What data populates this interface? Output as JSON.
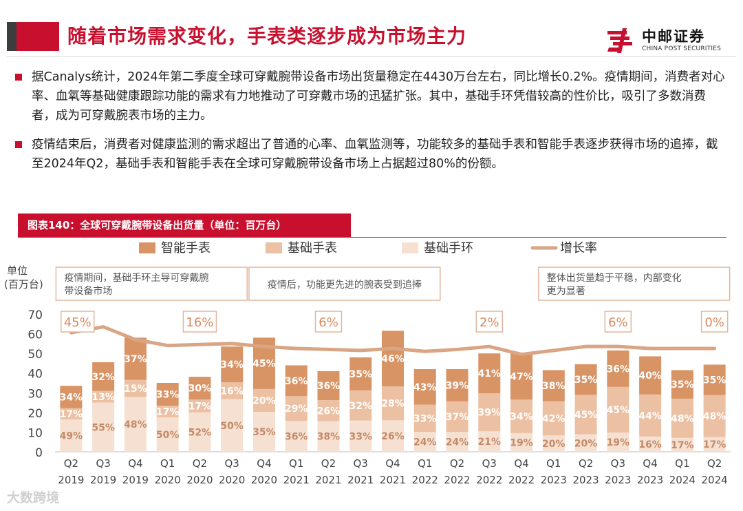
{
  "header": {
    "title": "随着市场需求变化，手表类逐步成为市场主力",
    "logo_cn": "中邮证券",
    "logo_en": "CHINA POST SECURITIES"
  },
  "bullets": [
    "据Canalys统计，2024年第二季度全球可穿戴腕带设备市场出货量稳定在4430万台左右，同比增长0.2%。疫情期间，消费者对心率、血氧等基础健康跟踪功能的需求有力地推动了可穿戴市场的迅猛扩张。其中，基础手环凭借较高的性价比，吸引了多数消费者，成为可穿戴腕表市场的主力。",
    "疫情结束后，消费者对健康监测的需求超出了普通的心率、血氧监测等，功能较多的基础手表和智能手表逐步获得市场的追捧，截至2024年Q2，基础手表和智能手表在全球可穿戴腕带设备市场上占据超过80%的份额。"
  ],
  "chart_label": "图表140：全球可穿戴腕带设备出货量（单位：百万台）",
  "watermark": "大数跨境",
  "colors": {
    "smartwatch": "#d99466",
    "basicwatch": "#ecc0a2",
    "basicband": "#f6e0d1",
    "growth": "#d9a584",
    "accent": "#c8102e"
  },
  "chart_data": {
    "type": "bar",
    "stacked": true,
    "title": "全球可穿戴腕带设备出货量（单位：百万台）",
    "ylabel": "单位\n(百万台)",
    "ylim": [
      0,
      70
    ],
    "yticks": [
      0,
      10,
      20,
      30,
      40,
      50,
      60,
      70
    ],
    "categories": [
      "Q2\n2019",
      "Q3\n2019",
      "Q4\n2019",
      "Q1\n2020",
      "Q2\n2020",
      "Q3\n2020",
      "Q4\n2020",
      "Q1\n2021",
      "Q2\n2021",
      "Q3\n2021",
      "Q4\n2021",
      "Q1\n2022",
      "Q2\n2022",
      "Q3\n2022",
      "Q4\n2022",
      "Q1\n2023",
      "Q2\n2023",
      "Q3\n2023",
      "Q4\n2023",
      "Q1\n2024",
      "Q2\n2024"
    ],
    "totals": [
      33.5,
      45.5,
      58,
      35,
      38.5,
      53.5,
      58,
      43.5,
      41,
      48,
      61.5,
      42,
      42,
      49.5,
      50,
      41.5,
      44.5,
      51.5,
      48.5,
      41.5,
      44.3
    ],
    "series": [
      {
        "name": "基础手环",
        "shares": [
          "49%",
          "55%",
          "48%",
          "50%",
          "52%",
          "50%",
          "35%",
          "36%",
          "38%",
          "33%",
          "26%",
          "24%",
          "24%",
          "21%",
          "19%",
          "20%",
          "20%",
          "19%",
          "16%",
          "17%",
          "17%"
        ]
      },
      {
        "name": "基础手表",
        "shares": [
          "17%",
          "13%",
          "15%",
          "17%",
          "17%",
          "16%",
          "20%",
          "29%",
          "26%",
          "32%",
          "28%",
          "33%",
          "37%",
          "39%",
          "34%",
          "42%",
          "45%",
          "45%",
          "44%",
          "48%",
          "48%"
        ]
      },
      {
        "name": "智能手表",
        "shares": [
          "34%",
          "32%",
          "37%",
          "33%",
          "30%",
          "34%",
          "45%",
          "36%",
          "36%",
          "35%",
          "46%",
          "43%",
          "39%",
          "41%",
          "47%",
          "38%",
          "35%",
          "36%",
          "40%",
          "35%",
          "35%"
        ]
      }
    ],
    "legend": [
      "智能手表",
      "基础手表",
      "基础手环",
      "增长率"
    ],
    "growth_line": {
      "name": "增长率",
      "values": [
        60.5,
        63.5,
        57,
        54,
        54.5,
        55,
        53.5,
        52.5,
        52,
        51.5,
        52.5,
        51,
        52,
        53.5,
        49.5,
        51.5,
        53.5,
        53.5,
        52.5,
        52.5,
        52.5
      ],
      "labels": [
        {
          "text": "45%",
          "index": 0.2
        },
        {
          "text": "16%",
          "index": 4
        },
        {
          "text": "6%",
          "index": 8
        },
        {
          "text": "2%",
          "index": 13
        },
        {
          "text": "6%",
          "index": 17
        },
        {
          "text": "0%",
          "index": 20
        }
      ]
    },
    "annotations": [
      {
        "text": "疫情期间，基础手环主导可穿戴腕\n带设备市场",
        "from": 0,
        "to": 5
      },
      {
        "text": "疫情后，功能更先进的腕表受到追捧",
        "from": 6,
        "to": 11
      },
      {
        "text": "整体出货量趋于平稳，内部变化\n更为显著",
        "from": 15,
        "to": 20
      }
    ]
  }
}
